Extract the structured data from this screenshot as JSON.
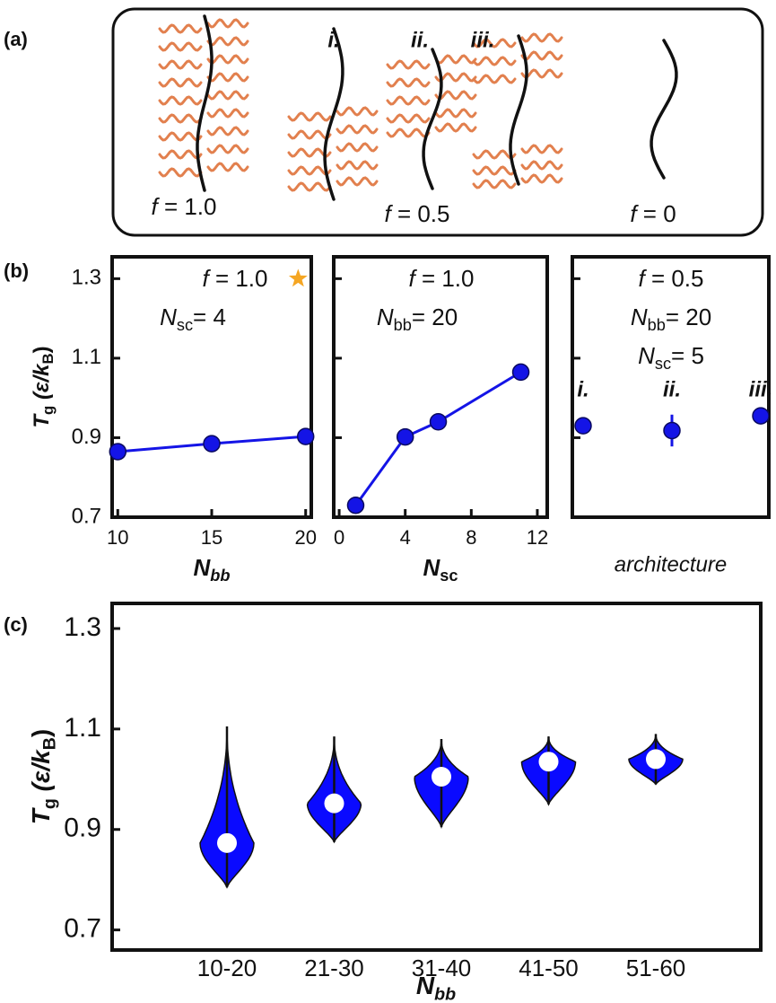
{
  "panel_labels": [
    "(a)",
    "(b)",
    "(c)"
  ],
  "diagram": {
    "architecture_labels": [
      "i.",
      "ii.",
      "iii."
    ],
    "captions": [
      [
        "f",
        " = 1.0"
      ],
      [
        "f",
        " = 0.5"
      ],
      [
        "f",
        " = 0"
      ]
    ]
  },
  "chart_data": [
    {
      "type": "line",
      "x": [
        10,
        15,
        20
      ],
      "values": [
        0.865,
        0.885,
        0.903
      ],
      "errors": [
        0.02,
        0.015,
        0.01
      ],
      "color": "#1414e6",
      "xlim": [
        9.7,
        20.3
      ],
      "xticks": [
        10,
        15,
        20
      ],
      "ylim": [
        0.7,
        1.355
      ],
      "yticks": [
        0.7,
        0.9,
        1.1,
        1.3
      ],
      "ylabel": [
        "T",
        "g",
        " (ε/k",
        "B",
        ")"
      ],
      "xlabel": [
        "N",
        "bb"
      ],
      "annotations": [
        [
          "f",
          " = 1.0"
        ],
        [
          "N",
          "sc",
          "= 4"
        ]
      ],
      "highlight": {
        "x": 19.6,
        "y": 1.3,
        "color": "#f5a623"
      }
    },
    {
      "type": "line",
      "x": [
        1,
        4,
        6,
        11
      ],
      "values": [
        0.73,
        0.902,
        0.94,
        1.065
      ],
      "errors": [
        0.005,
        0.008,
        0.008,
        0.008
      ],
      "color": "#1414e6",
      "xlim": [
        -0.33,
        12.6
      ],
      "xticks": [
        0,
        4,
        8,
        12
      ],
      "ylim": [
        0.7,
        1.355
      ],
      "yticks": [
        0.7,
        0.9,
        1.1,
        1.3
      ],
      "xlabel": [
        "N",
        "sc"
      ],
      "annotations": [
        [
          "f",
          " = 1.0"
        ],
        [
          "N",
          "bb",
          "= 20"
        ]
      ]
    },
    {
      "type": "point",
      "categories": [
        "i.",
        "ii.",
        "iii."
      ],
      "values": [
        0.93,
        0.918,
        0.955
      ],
      "errors": [
        0.01,
        0.04,
        0.02
      ],
      "color": "#1414e6",
      "category_color": "#f0a030",
      "ylim": [
        0.7,
        1.355
      ],
      "yticks": [
        0.7,
        0.9,
        1.1,
        1.3
      ],
      "xlabel": "architecture",
      "annotations": [
        [
          "f",
          " = 0.5"
        ],
        [
          "N",
          "bb",
          "= 20"
        ],
        [
          "N",
          "sc",
          "= 5"
        ]
      ]
    },
    {
      "type": "violin",
      "categories": [
        "10-20",
        "21-30",
        "31-40",
        "41-50",
        "51-60"
      ],
      "median": [
        0.873,
        0.952,
        1.005,
        1.035,
        1.04
      ],
      "min": [
        0.785,
        0.875,
        0.905,
        0.95,
        0.99
      ],
      "max": [
        1.105,
        1.085,
        1.08,
        1.085,
        1.09
      ],
      "color": "#0a0aff",
      "median_color": "#ffffff",
      "ylim": [
        0.66,
        1.35
      ],
      "yticks": [
        0.7,
        0.9,
        1.1,
        1.3
      ],
      "ylabel": [
        "T",
        "g",
        " (ε/k",
        "B",
        ")"
      ],
      "xlabel": [
        "N",
        "bb"
      ]
    }
  ]
}
